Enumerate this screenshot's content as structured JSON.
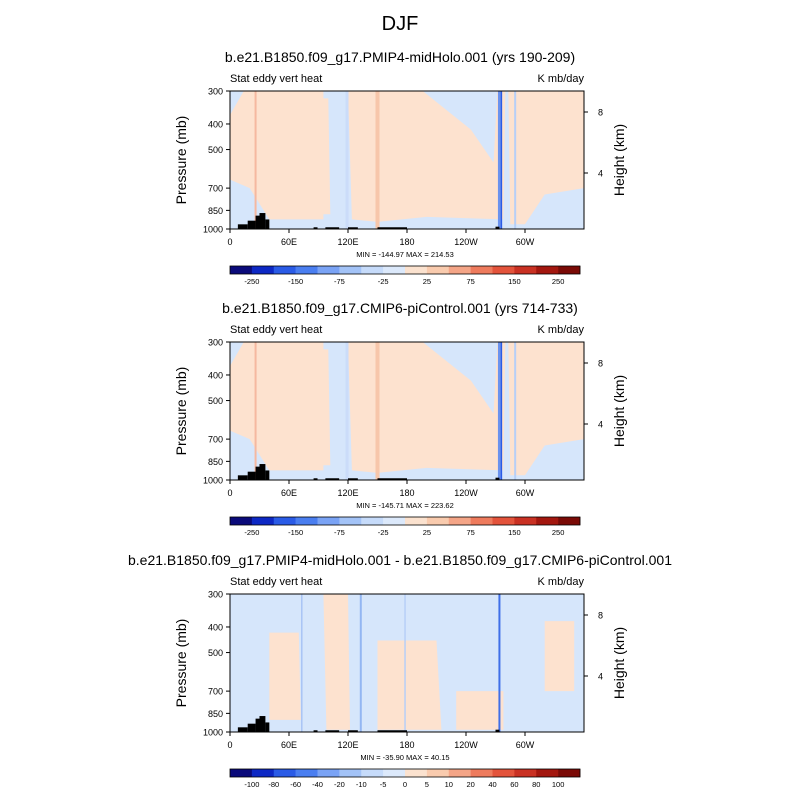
{
  "figure": {
    "title": "DJF"
  },
  "chart_data": [
    {
      "type": "heatmap",
      "title": "b.e21.B1850.f09_g17.PMIP4-midHolo.001 (yrs 190-209)",
      "left_label": "Stat eddy vert heat",
      "right_label": "K mb/day",
      "ylabel": "Pressure (mb)",
      "ylabel_right": "Height (km)",
      "y_ticks": [
        "300",
        "400",
        "500",
        "700",
        "850",
        "1000"
      ],
      "y_tick_values": [
        300,
        400,
        500,
        700,
        850,
        1000
      ],
      "y_right_ticks": [
        "8",
        "4"
      ],
      "x_ticks": [
        "0",
        "60E",
        "120E",
        "180",
        "120W",
        "60W"
      ],
      "x_tick_values": [
        0,
        60,
        120,
        180,
        240,
        300
      ],
      "xlim": [
        0,
        360
      ],
      "ylim": [
        1000,
        300
      ],
      "stats": "MIN = -144.97   MAX = 214.53",
      "colorbar_labels": [
        "-250",
        "-150",
        "-75",
        "-25",
        "25",
        "75",
        "150",
        "250"
      ],
      "colorbar_levels": [
        -300,
        -250,
        -200,
        -150,
        -100,
        -75,
        -50,
        -25,
        0,
        25,
        50,
        75,
        100,
        150,
        200,
        250,
        300
      ]
    },
    {
      "type": "heatmap",
      "title": "b.e21.B1850.f09_g17.CMIP6-piControl.001 (yrs 714-733)",
      "left_label": "Stat eddy vert heat",
      "right_label": "K mb/day",
      "ylabel": "Pressure (mb)",
      "ylabel_right": "Height (km)",
      "y_ticks": [
        "300",
        "400",
        "500",
        "700",
        "850",
        "1000"
      ],
      "y_tick_values": [
        300,
        400,
        500,
        700,
        850,
        1000
      ],
      "y_right_ticks": [
        "8",
        "4"
      ],
      "x_ticks": [
        "0",
        "60E",
        "120E",
        "180",
        "120W",
        "60W"
      ],
      "x_tick_values": [
        0,
        60,
        120,
        180,
        240,
        300
      ],
      "xlim": [
        0,
        360
      ],
      "ylim": [
        1000,
        300
      ],
      "stats": "MIN = -145.71   MAX = 223.62",
      "colorbar_labels": [
        "-250",
        "-150",
        "-75",
        "-25",
        "25",
        "75",
        "150",
        "250"
      ],
      "colorbar_levels": [
        -300,
        -250,
        -200,
        -150,
        -100,
        -75,
        -50,
        -25,
        0,
        25,
        50,
        75,
        100,
        150,
        200,
        250,
        300
      ]
    },
    {
      "type": "heatmap",
      "title": "b.e21.B1850.f09_g17.PMIP4-midHolo.001 - b.e21.B1850.f09_g17.CMIP6-piControl.001",
      "left_label": "Stat eddy vert heat",
      "right_label": "K mb/day",
      "ylabel": "Pressure (mb)",
      "ylabel_right": "Height (km)",
      "y_ticks": [
        "300",
        "400",
        "500",
        "700",
        "850",
        "1000"
      ],
      "y_tick_values": [
        300,
        400,
        500,
        700,
        850,
        1000
      ],
      "y_right_ticks": [
        "8",
        "4"
      ],
      "x_ticks": [
        "0",
        "60E",
        "120E",
        "180",
        "120W",
        "60W"
      ],
      "x_tick_values": [
        0,
        60,
        120,
        180,
        240,
        300
      ],
      "xlim": [
        0,
        360
      ],
      "ylim": [
        1000,
        300
      ],
      "stats": "MIN = -35.90   MAX = 40.15",
      "colorbar_labels": [
        "-100",
        "-80",
        "-60",
        "-40",
        "-20",
        "-10",
        "-5",
        "0",
        "5",
        "10",
        "20",
        "40",
        "60",
        "80",
        "100"
      ],
      "colorbar_levels": [
        -120,
        -100,
        -80,
        -60,
        -40,
        -20,
        -10,
        -5,
        0,
        5,
        10,
        20,
        40,
        60,
        80,
        100,
        120
      ]
    }
  ],
  "colors": {
    "colorbar": [
      "#0a0a7a",
      "#0d28c4",
      "#2a5be6",
      "#4a7ef0",
      "#7aa3f5",
      "#a3c3f7",
      "#c6dbfa",
      "#dce9fb",
      "#fbe2cf",
      "#f9cbae",
      "#f4a587",
      "#ee7b5d",
      "#e3533b",
      "#c93123",
      "#a3170f",
      "#7a0a06"
    ],
    "neg_light": "#d6e6fb",
    "pos_light": "#fde2cf",
    "terrain": "#000000"
  }
}
